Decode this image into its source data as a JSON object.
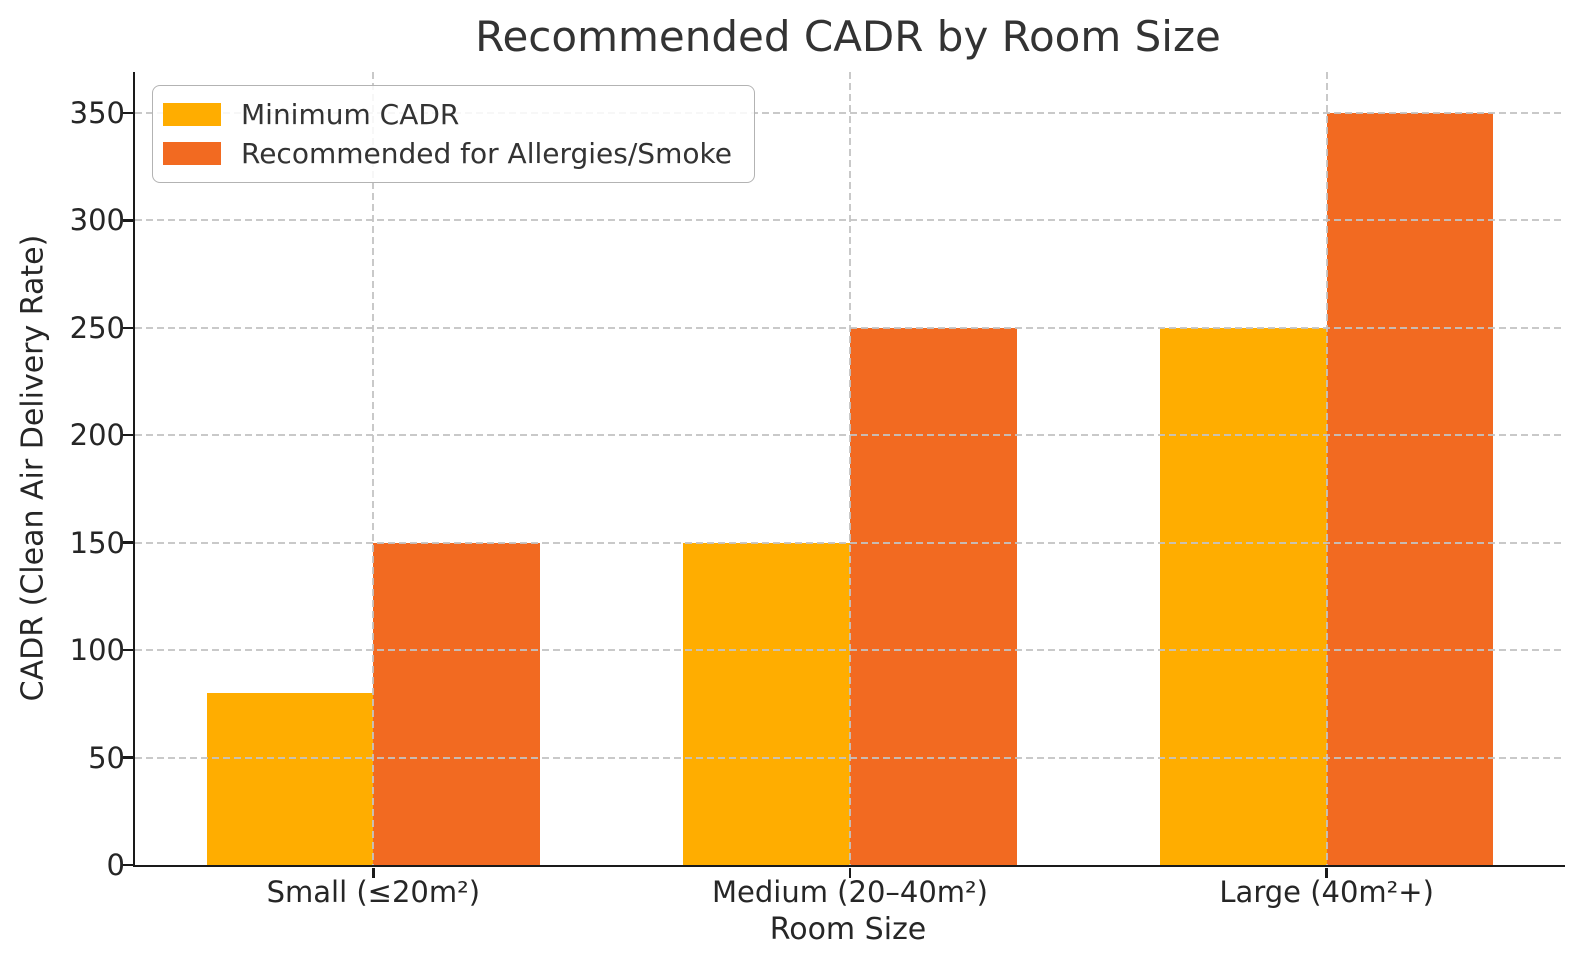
{
  "chart_data": {
    "type": "bar",
    "title": "Recommended CADR by Room Size",
    "xlabel": "Room Size",
    "ylabel": "CADR (Clean Air Delivery Rate)",
    "categories": [
      "Small (≤20m²)",
      "Medium (20–40m²)",
      "Large (40m²+)"
    ],
    "series": [
      {
        "name": "Minimum CADR",
        "color": "#FFAD00",
        "values": [
          80,
          150,
          250
        ]
      },
      {
        "name": "Recommended for Allergies/Smoke",
        "color": "#F26A21",
        "values": [
          150,
          250,
          350
        ]
      }
    ],
    "yticks": [
      0,
      50,
      100,
      150,
      200,
      250,
      300,
      350
    ],
    "ylim": [
      0,
      369
    ],
    "bar_width_fraction": 0.35,
    "grid": {
      "axis": "both",
      "style": "dashed",
      "color": "#C3C3C3"
    },
    "legend_position": "upper left"
  }
}
